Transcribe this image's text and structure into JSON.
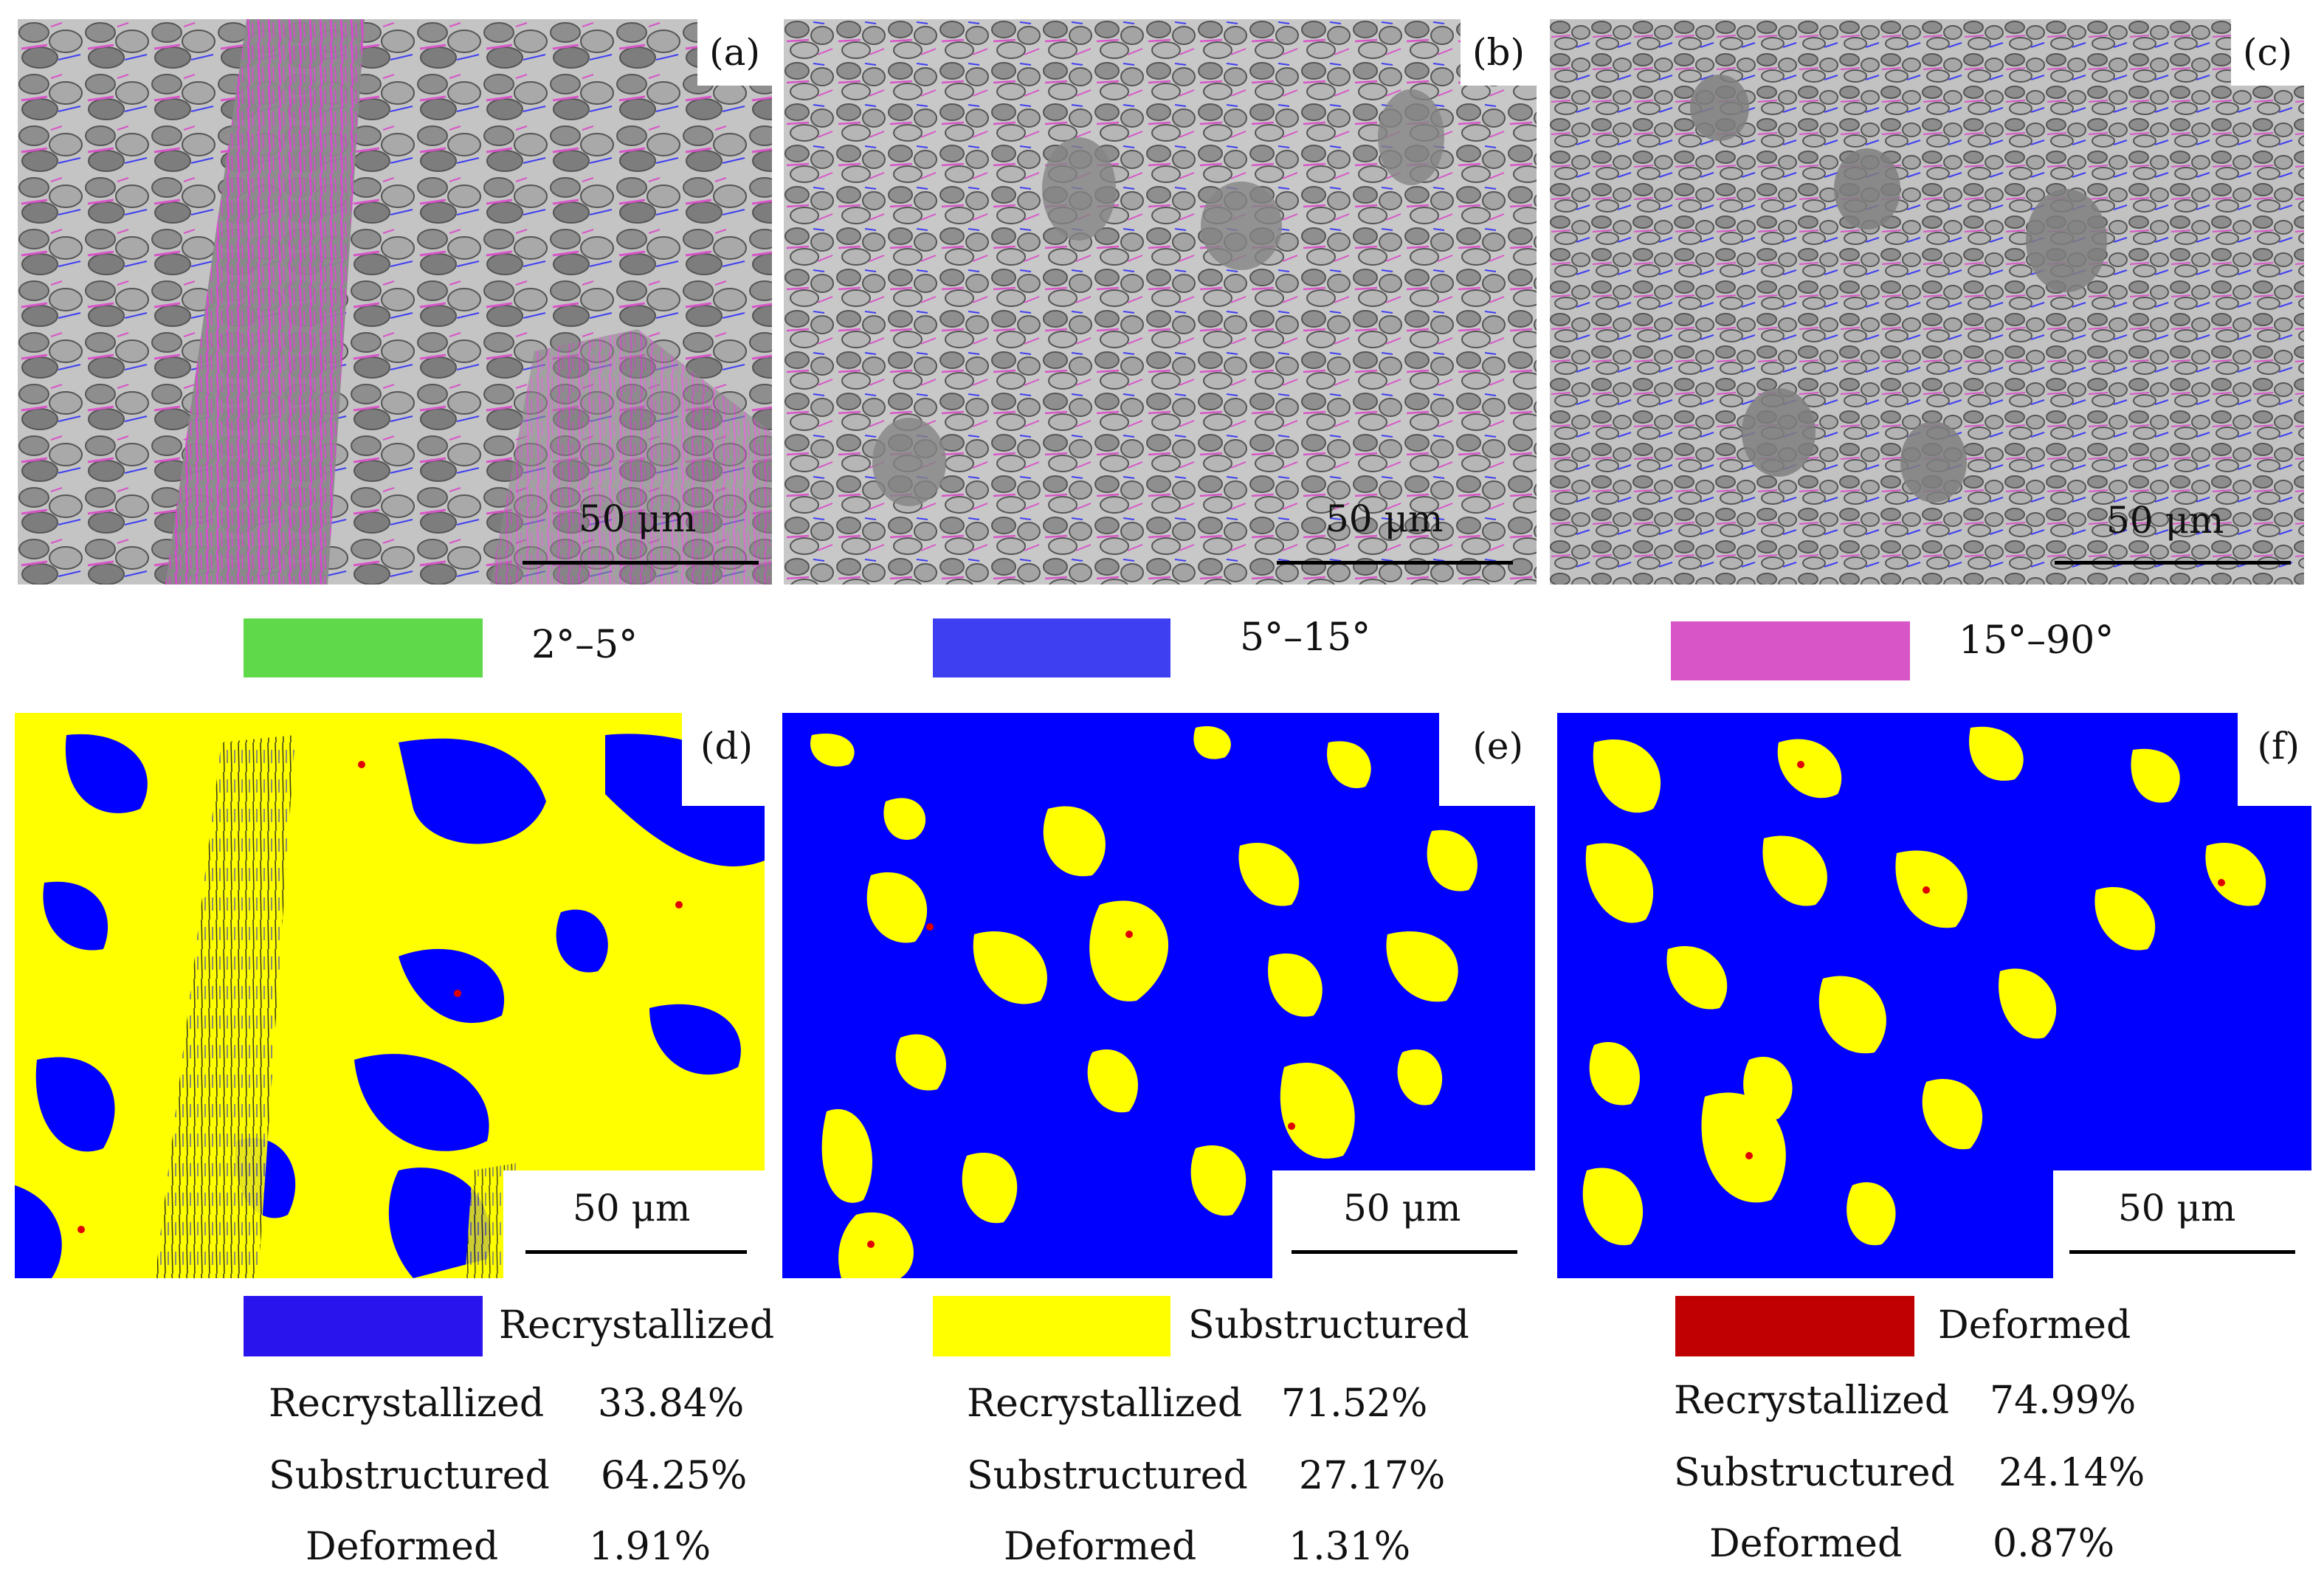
{
  "panels": {
    "a": {
      "label": "(a)",
      "scale": "50 μm"
    },
    "b": {
      "label": "(b)",
      "scale": "50 μm"
    },
    "c": {
      "label": "(c)",
      "scale": "50 μm"
    },
    "d": {
      "label": "(d)",
      "scale": "50 μm"
    },
    "e": {
      "label": "(e)",
      "scale": "50 μm"
    },
    "f": {
      "label": "(f)",
      "scale": "50 μm"
    }
  },
  "boundary_legend": [
    {
      "label": "2°–5°",
      "color": "#5fd84a"
    },
    {
      "label": "5°–15°",
      "color": "#3f3ff2"
    },
    {
      "label": "15°–90°",
      "color": "#d855c8"
    }
  ],
  "grain_legend": [
    {
      "label": "Recrystallized",
      "color": "#2a14ee"
    },
    {
      "label": "Substructured",
      "color": "#ffff00"
    },
    {
      "label": "Deformed",
      "color": "#c00000"
    }
  ],
  "fractions": {
    "d": {
      "recrystallized": {
        "name": "Recrystallized",
        "value": "33.84%"
      },
      "substructured": {
        "name": "Substructured",
        "value": "64.25%"
      },
      "deformed": {
        "name": "Deformed",
        "value": "1.91%"
      }
    },
    "e": {
      "recrystallized": {
        "name": "Recrystallized",
        "value": "71.52%"
      },
      "substructured": {
        "name": "Substructured",
        "value": "27.17%"
      },
      "deformed": {
        "name": "Deformed",
        "value": "1.31%"
      }
    },
    "f": {
      "recrystallized": {
        "name": "Recrystallized",
        "value": "74.99%"
      },
      "substructured": {
        "name": "Substructured",
        "value": "24.14%"
      },
      "deformed": {
        "name": "Deformed",
        "value": "0.87%"
      }
    }
  },
  "colors": {
    "map_gray": "#9a9a9a",
    "map_recrystallized": "#0000ff",
    "map_substructured": "#ffff00",
    "map_deformed": "#e00000"
  }
}
